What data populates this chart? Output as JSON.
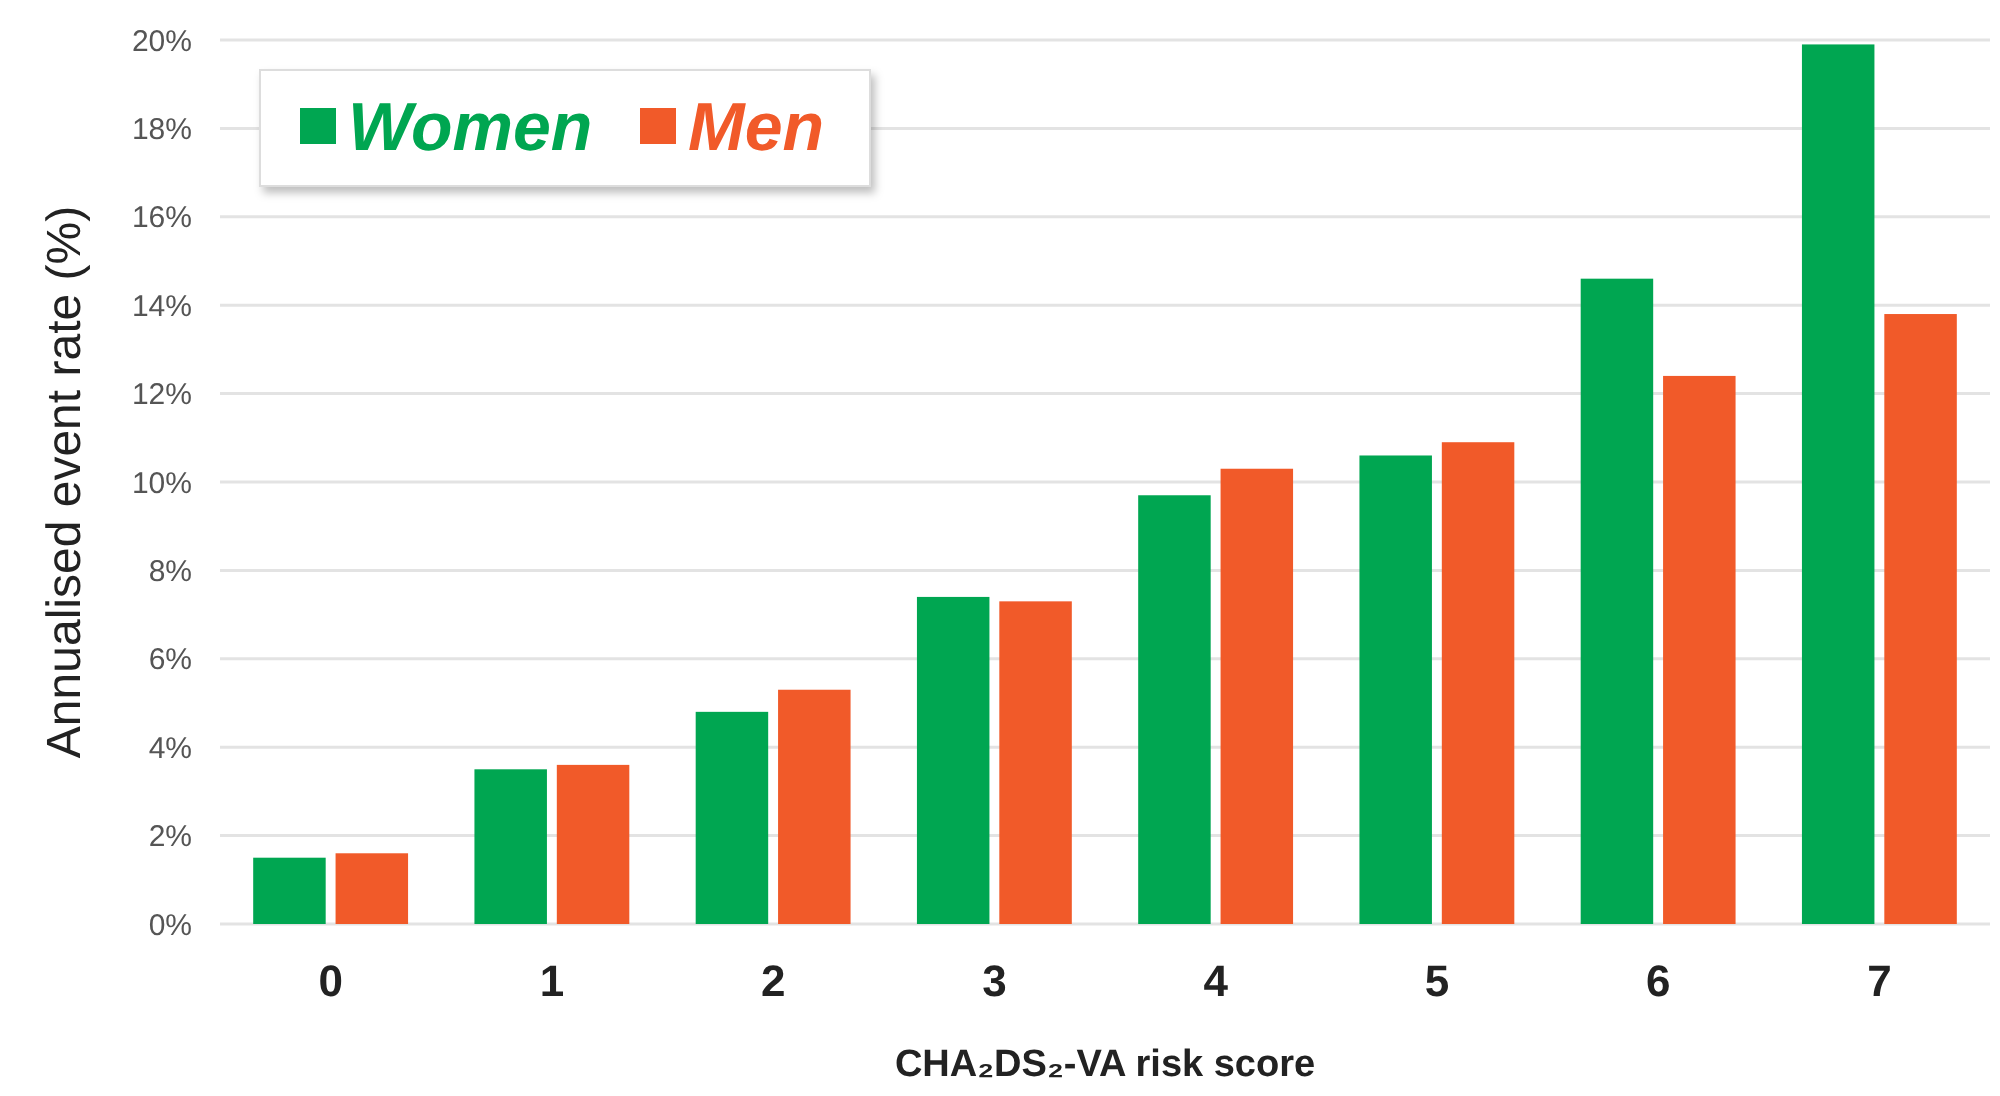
{
  "chart_data": {
    "type": "bar",
    "xlabel": "CHA₂DS₂-VA risk score",
    "ylabel": "Annualised event rate (%)",
    "categories": [
      "0",
      "1",
      "2",
      "3",
      "4",
      "5",
      "6",
      "7"
    ],
    "series": [
      {
        "name": "Women",
        "color": "#00a651",
        "values": [
          1.5,
          3.5,
          4.8,
          7.4,
          9.7,
          10.6,
          14.6,
          19.9
        ]
      },
      {
        "name": "Men",
        "color": "#f15a29",
        "values": [
          1.6,
          3.6,
          5.3,
          7.3,
          10.3,
          10.9,
          12.4,
          13.8
        ]
      }
    ],
    "ylim": [
      0,
      20
    ],
    "yticks": [
      {
        "value": 0,
        "label": "0%"
      },
      {
        "value": 2,
        "label": "2%"
      },
      {
        "value": 4,
        "label": "4%"
      },
      {
        "value": 6,
        "label": "6%"
      },
      {
        "value": 8,
        "label": "8%"
      },
      {
        "value": 10,
        "label": "10%"
      },
      {
        "value": 12,
        "label": "12%"
      },
      {
        "value": 14,
        "label": "14%"
      },
      {
        "value": 16,
        "label": "16%"
      },
      {
        "value": 18,
        "label": "18%"
      },
      {
        "value": 20,
        "label": "20%"
      }
    ],
    "grid": "y",
    "legend": "top left"
  }
}
